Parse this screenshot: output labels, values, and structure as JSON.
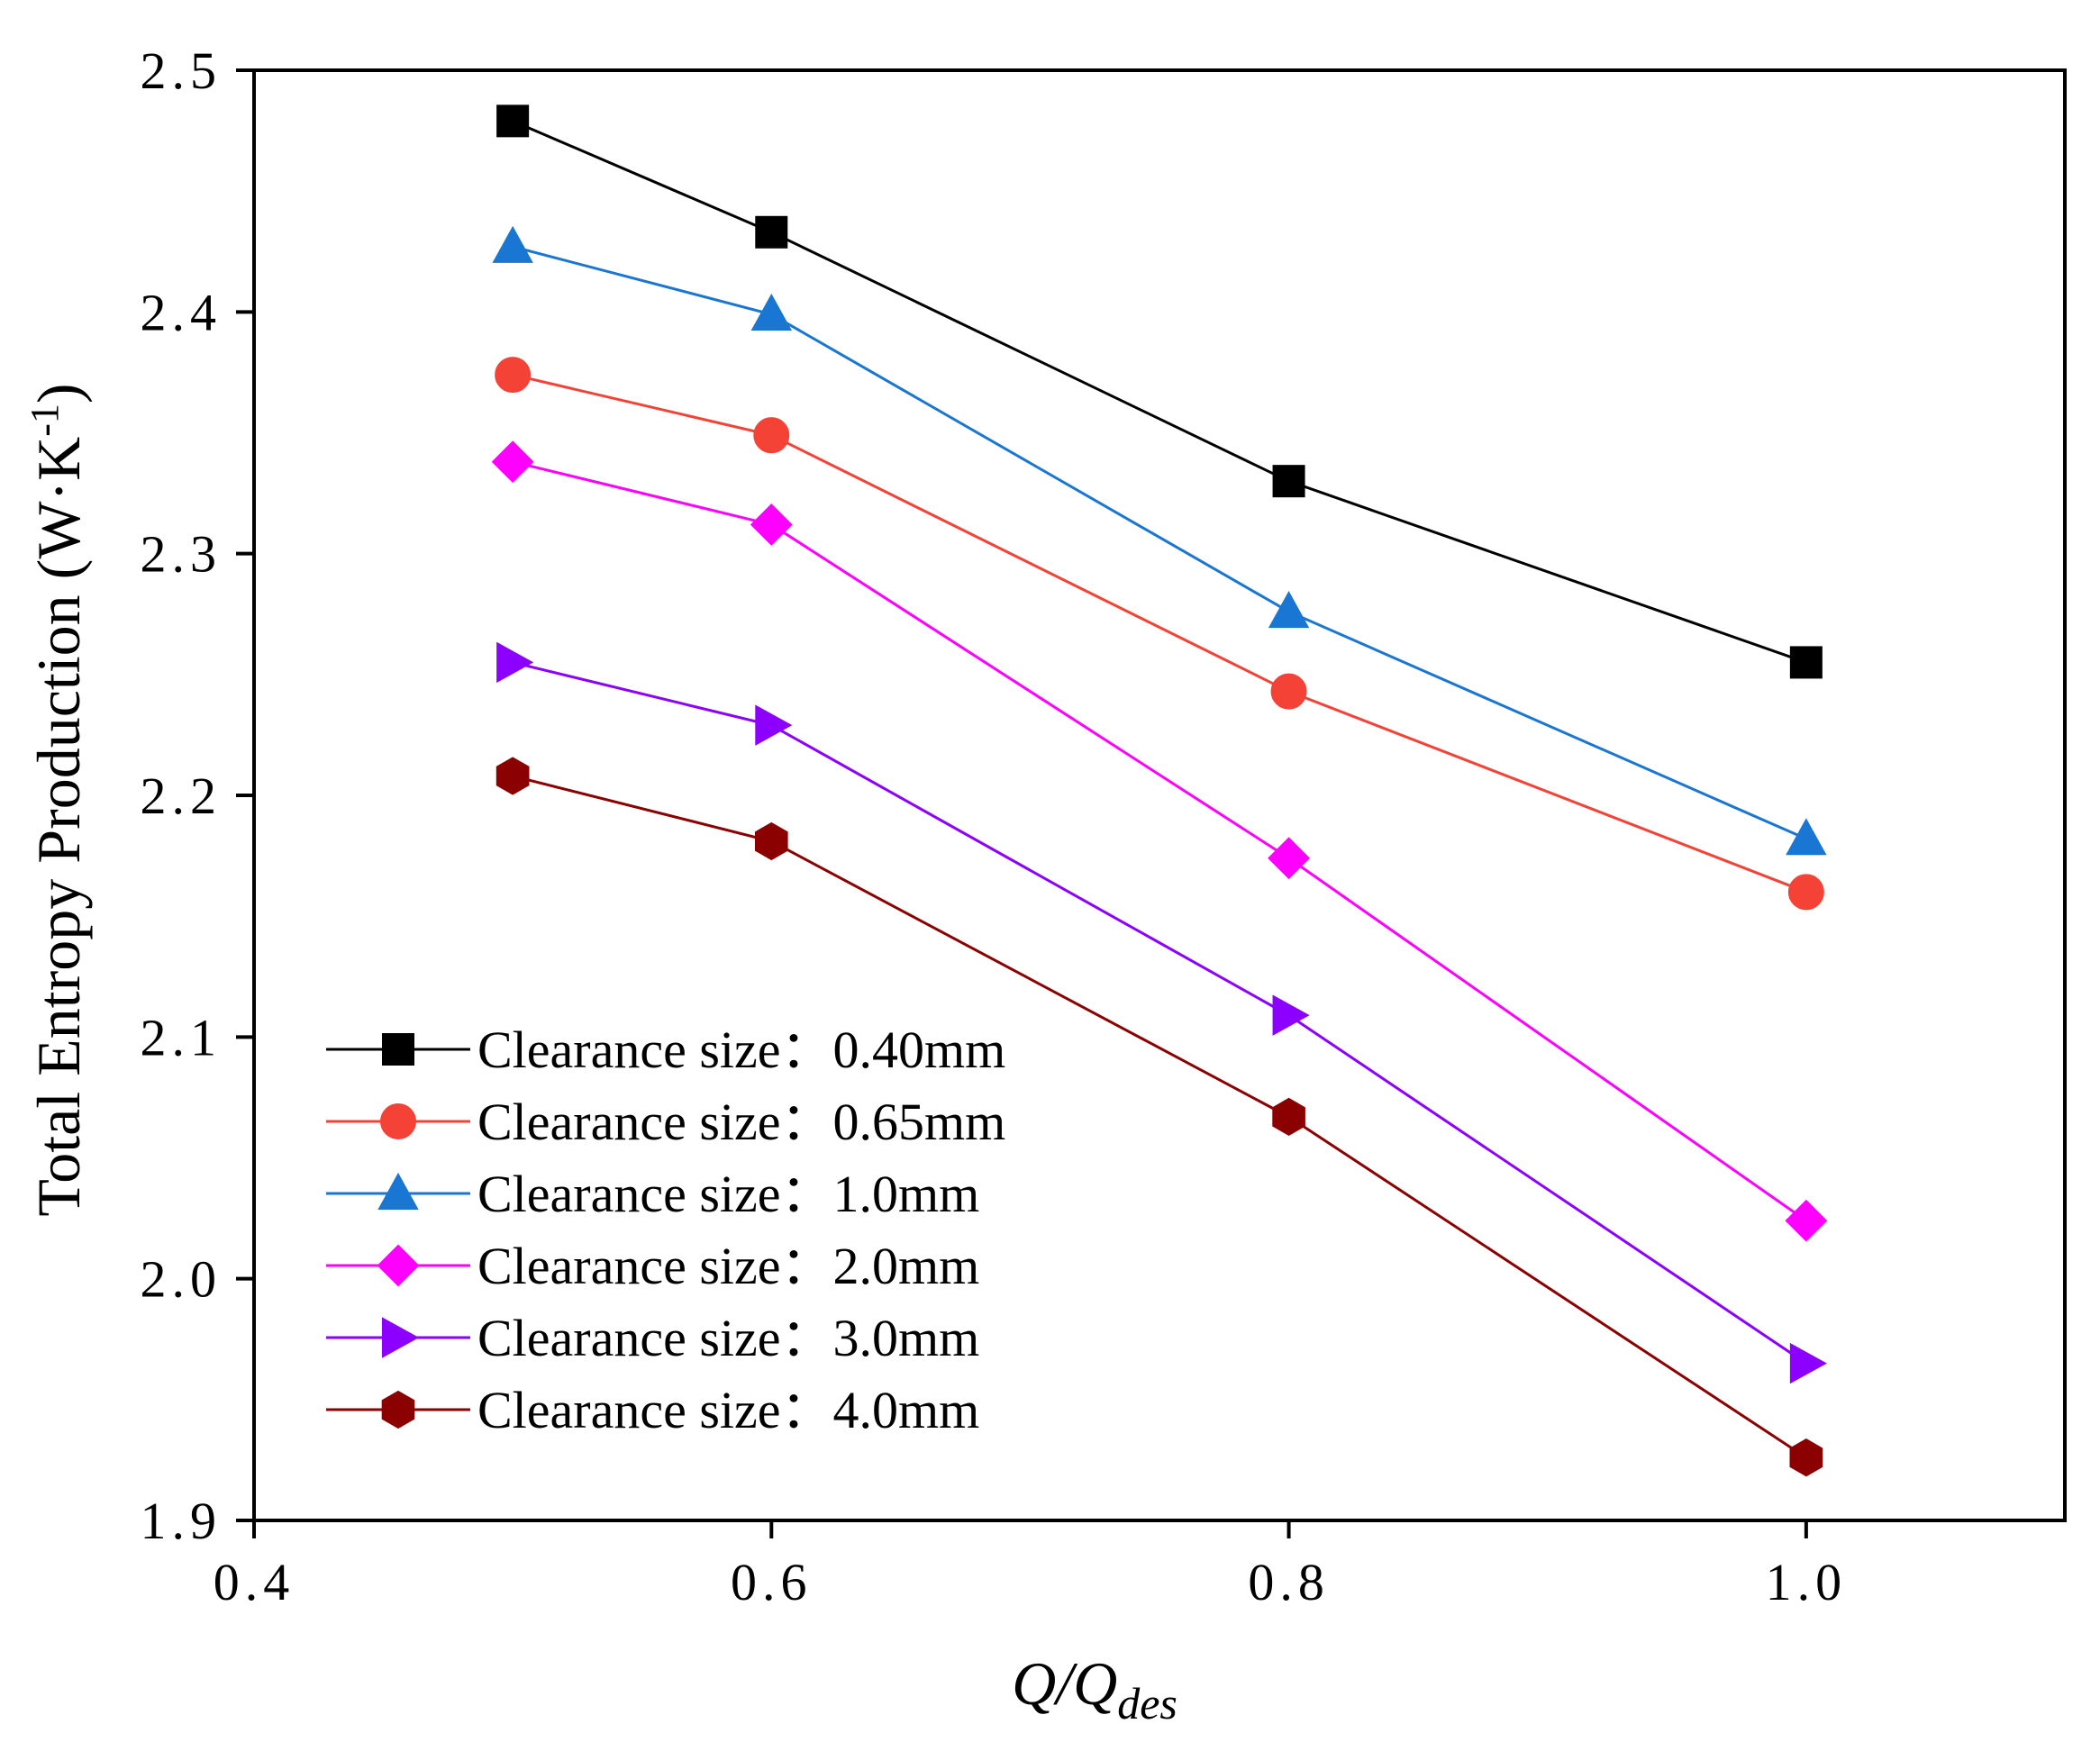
{
  "chart_data": {
    "type": "line",
    "ylabel_parts": {
      "main": "Total Entropy Production (W·K",
      "sup": "-1",
      "close": ")"
    },
    "xlabel_parts": {
      "main": "Q/Q",
      "sub": "des"
    },
    "xlim": [
      0.4,
      1.1
    ],
    "ylim": [
      1.9,
      2.5
    ],
    "xticks": [
      0.4,
      0.6,
      0.8,
      1.0
    ],
    "xtick_labels": [
      "0.4",
      "0.6",
      "0.8",
      "1.0"
    ],
    "yticks": [
      1.9,
      2.0,
      2.1,
      2.2,
      2.3,
      2.4,
      2.5
    ],
    "ytick_labels": [
      "1.9",
      "2.0",
      "2.1",
      "2.2",
      "2.3",
      "2.4",
      "2.5"
    ],
    "grid": false,
    "legend_position": "lower-left",
    "x": [
      0.5,
      0.6,
      0.8,
      1.0
    ],
    "series": [
      {
        "name": "Clearance size：0.40mm",
        "values": [
          2.479,
          2.433,
          2.33,
          2.255
        ],
        "color": "#000000",
        "marker": "square"
      },
      {
        "name": "Clearance size：0.65mm",
        "values": [
          2.374,
          2.349,
          2.243,
          2.16
        ],
        "color": "#f44336",
        "marker": "circle"
      },
      {
        "name": "Clearance size：1.0mm",
        "values": [
          2.427,
          2.399,
          2.276,
          2.182
        ],
        "color": "#1976d2",
        "marker": "triangle-up"
      },
      {
        "name": "Clearance size：2.0mm",
        "values": [
          2.338,
          2.312,
          2.174,
          2.024
        ],
        "color": "#ff00ff",
        "marker": "diamond"
      },
      {
        "name": "Clearance size：3.0mm",
        "values": [
          2.255,
          2.229,
          2.109,
          1.965
        ],
        "color": "#8b00ff",
        "marker": "triangle-right"
      },
      {
        "name": "Clearance size：4.0mm",
        "values": [
          2.208,
          2.181,
          2.067,
          1.926
        ],
        "color": "#8b0000",
        "marker": "hexagon"
      }
    ]
  }
}
